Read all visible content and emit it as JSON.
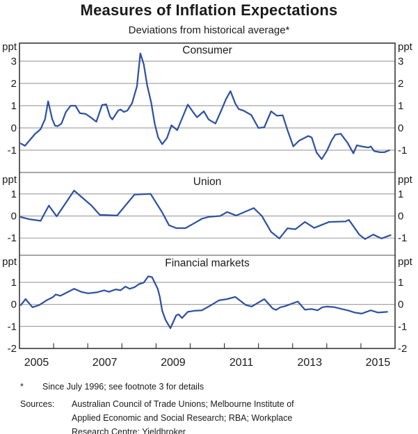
{
  "header": {
    "title": "Measures of Inflation Expectations",
    "subtitle": "Deviations from historical average*"
  },
  "footnotes": {
    "marker": "*",
    "text": "Since July 1996; see footnote 3 for details",
    "sources_label": "Sources:",
    "sources": [
      "Australian Council of Trade Unions; Melbourne Institute of",
      "Applied Economic and Social Research; RBA; Workplace",
      "Research Centre; Yieldbroker"
    ]
  },
  "colors": {
    "series_line": "#2e52a0",
    "gridline": "#9a9a9a",
    "divider": "#8a8a8a",
    "frame": "#2a2a2a",
    "text": "#1a1a1a",
    "background": "#ffffff"
  },
  "chart_data": {
    "type": "line",
    "title": "Measures of Inflation Expectations",
    "subtitle": "Deviations from historical average*",
    "unit": "ppt",
    "grid": true,
    "legend_position": "none",
    "x_range": [
      2005,
      2016
    ],
    "x_ticks": [
      2006,
      2007,
      2008,
      2009,
      2010,
      2011,
      2012,
      2013,
      2014,
      2015
    ],
    "x_year_labels": [
      "2005",
      "2007",
      "2009",
      "2011",
      "2013",
      "2015"
    ],
    "axis_bottom_label": "-2",
    "panels": [
      {
        "label": "Consumer",
        "ylim": [
          -2,
          3.81
        ],
        "yticks": [
          3,
          2,
          1,
          0,
          -1
        ],
        "ppt_dy": 10,
        "label_dy": 15,
        "series": [
          [
            2005.04,
            -0.7
          ],
          [
            2005.16,
            -0.8
          ],
          [
            2005.3,
            -0.55
          ],
          [
            2005.45,
            -0.28
          ],
          [
            2005.62,
            -0.05
          ],
          [
            2005.75,
            0.4
          ],
          [
            2005.84,
            1.2
          ],
          [
            2005.96,
            0.4
          ],
          [
            2006.04,
            0.1
          ],
          [
            2006.12,
            0.08
          ],
          [
            2006.23,
            0.2
          ],
          [
            2006.36,
            0.72
          ],
          [
            2006.5,
            1.0
          ],
          [
            2006.64,
            1.0
          ],
          [
            2006.77,
            0.66
          ],
          [
            2006.94,
            0.63
          ],
          [
            2007.08,
            0.48
          ],
          [
            2007.25,
            0.28
          ],
          [
            2007.42,
            1.03
          ],
          [
            2007.54,
            1.06
          ],
          [
            2007.65,
            0.52
          ],
          [
            2007.72,
            0.38
          ],
          [
            2007.89,
            0.78
          ],
          [
            2007.96,
            0.83
          ],
          [
            2008.06,
            0.72
          ],
          [
            2008.16,
            0.78
          ],
          [
            2008.3,
            1.12
          ],
          [
            2008.44,
            1.87
          ],
          [
            2008.54,
            3.35
          ],
          [
            2008.64,
            2.86
          ],
          [
            2008.74,
            1.92
          ],
          [
            2008.86,
            1.12
          ],
          [
            2008.96,
            0.2
          ],
          [
            2009.06,
            -0.42
          ],
          [
            2009.18,
            -0.73
          ],
          [
            2009.32,
            -0.45
          ],
          [
            2009.45,
            0.12
          ],
          [
            2009.62,
            -0.1
          ],
          [
            2009.78,
            0.5
          ],
          [
            2009.93,
            1.05
          ],
          [
            2010.08,
            0.72
          ],
          [
            2010.2,
            0.48
          ],
          [
            2010.4,
            0.75
          ],
          [
            2010.54,
            0.38
          ],
          [
            2010.74,
            0.2
          ],
          [
            2010.9,
            0.75
          ],
          [
            2011.05,
            1.3
          ],
          [
            2011.18,
            1.65
          ],
          [
            2011.32,
            1.1
          ],
          [
            2011.42,
            0.85
          ],
          [
            2011.56,
            0.78
          ],
          [
            2011.79,
            0.58
          ],
          [
            2012.0,
            0.0
          ],
          [
            2012.17,
            0.03
          ],
          [
            2012.37,
            0.75
          ],
          [
            2012.54,
            0.55
          ],
          [
            2012.71,
            0.57
          ],
          [
            2012.85,
            -0.1
          ],
          [
            2013.02,
            -0.83
          ],
          [
            2013.19,
            -0.57
          ],
          [
            2013.46,
            -0.36
          ],
          [
            2013.56,
            -0.43
          ],
          [
            2013.7,
            -1.1
          ],
          [
            2013.85,
            -1.4
          ],
          [
            2014.0,
            -1.04
          ],
          [
            2014.14,
            -0.57
          ],
          [
            2014.25,
            -0.3
          ],
          [
            2014.41,
            -0.26
          ],
          [
            2014.61,
            -0.67
          ],
          [
            2014.78,
            -1.14
          ],
          [
            2014.88,
            -0.78
          ],
          [
            2015.02,
            -0.83
          ],
          [
            2015.22,
            -0.88
          ],
          [
            2015.29,
            -0.83
          ],
          [
            2015.39,
            -1.04
          ],
          [
            2015.56,
            -1.09
          ],
          [
            2015.69,
            -1.09
          ],
          [
            2015.83,
            -1.0
          ]
        ]
      },
      {
        "label": "Union",
        "ylim": [
          -1.78,
          1.97
        ],
        "yticks": [
          1,
          0,
          -1
        ],
        "ppt_dy": 15,
        "label_dy": 18,
        "series": [
          [
            2005.04,
            -0.05
          ],
          [
            2005.3,
            -0.15
          ],
          [
            2005.62,
            -0.22
          ],
          [
            2005.86,
            0.47
          ],
          [
            2006.09,
            -0.02
          ],
          [
            2006.6,
            1.15
          ],
          [
            2007.11,
            0.47
          ],
          [
            2007.35,
            0.05
          ],
          [
            2007.86,
            0.02
          ],
          [
            2008.37,
            0.97
          ],
          [
            2008.84,
            1.0
          ],
          [
            2009.18,
            0.16
          ],
          [
            2009.38,
            -0.42
          ],
          [
            2009.59,
            -0.55
          ],
          [
            2009.86,
            -0.55
          ],
          [
            2010.13,
            -0.32
          ],
          [
            2010.34,
            -0.13
          ],
          [
            2010.54,
            -0.04
          ],
          [
            2010.88,
            0.0
          ],
          [
            2011.08,
            0.18
          ],
          [
            2011.35,
            0.02
          ],
          [
            2011.86,
            0.36
          ],
          [
            2012.1,
            0.0
          ],
          [
            2012.37,
            -0.72
          ],
          [
            2012.61,
            -1.02
          ],
          [
            2012.85,
            -0.56
          ],
          [
            2013.08,
            -0.6
          ],
          [
            2013.36,
            -0.27
          ],
          [
            2013.63,
            -0.54
          ],
          [
            2014.07,
            -0.27
          ],
          [
            2014.55,
            -0.25
          ],
          [
            2014.65,
            -0.18
          ],
          [
            2014.95,
            -0.84
          ],
          [
            2015.12,
            -1.05
          ],
          [
            2015.36,
            -0.84
          ],
          [
            2015.6,
            -1.02
          ],
          [
            2015.87,
            -0.87
          ]
        ]
      },
      {
        "label": "Financial markets",
        "ylim": [
          -2,
          2.23
        ],
        "yticks": [
          1,
          0,
          -1
        ],
        "ppt_dy": 14,
        "label_dy": 16,
        "series": [
          [
            2005.04,
            -0.03
          ],
          [
            2005.18,
            0.24
          ],
          [
            2005.38,
            -0.13
          ],
          [
            2005.58,
            -0.03
          ],
          [
            2005.79,
            0.18
          ],
          [
            2005.99,
            0.34
          ],
          [
            2006.06,
            0.45
          ],
          [
            2006.2,
            0.39
          ],
          [
            2006.4,
            0.55
          ],
          [
            2006.6,
            0.71
          ],
          [
            2006.81,
            0.57
          ],
          [
            2007.01,
            0.5
          ],
          [
            2007.28,
            0.55
          ],
          [
            2007.48,
            0.64
          ],
          [
            2007.62,
            0.57
          ],
          [
            2007.82,
            0.68
          ],
          [
            2007.96,
            0.64
          ],
          [
            2008.1,
            0.81
          ],
          [
            2008.23,
            0.71
          ],
          [
            2008.37,
            0.78
          ],
          [
            2008.5,
            0.92
          ],
          [
            2008.64,
            0.99
          ],
          [
            2008.77,
            1.27
          ],
          [
            2008.88,
            1.24
          ],
          [
            2009.05,
            0.71
          ],
          [
            2009.11,
            0.34
          ],
          [
            2009.18,
            -0.29
          ],
          [
            2009.28,
            -0.71
          ],
          [
            2009.42,
            -1.08
          ],
          [
            2009.59,
            -0.5
          ],
          [
            2009.66,
            -0.45
          ],
          [
            2009.76,
            -0.62
          ],
          [
            2009.93,
            -0.34
          ],
          [
            2010.13,
            -0.29
          ],
          [
            2010.34,
            -0.27
          ],
          [
            2010.54,
            -0.1
          ],
          [
            2010.84,
            0.18
          ],
          [
            2011.08,
            0.24
          ],
          [
            2011.32,
            0.34
          ],
          [
            2011.63,
            -0.03
          ],
          [
            2011.8,
            -0.1
          ],
          [
            2012.17,
            0.24
          ],
          [
            2012.41,
            -0.18
          ],
          [
            2012.51,
            -0.25
          ],
          [
            2012.64,
            -0.13
          ],
          [
            2012.78,
            -0.08
          ],
          [
            2013.15,
            0.13
          ],
          [
            2013.36,
            -0.24
          ],
          [
            2013.56,
            -0.21
          ],
          [
            2013.73,
            -0.27
          ],
          [
            2013.87,
            -0.13
          ],
          [
            2014.0,
            -0.1
          ],
          [
            2014.24,
            -0.13
          ],
          [
            2014.44,
            -0.21
          ],
          [
            2014.61,
            -0.27
          ],
          [
            2014.82,
            -0.37
          ],
          [
            2015.02,
            -0.42
          ],
          [
            2015.29,
            -0.27
          ],
          [
            2015.5,
            -0.37
          ],
          [
            2015.77,
            -0.34
          ]
        ]
      }
    ]
  }
}
